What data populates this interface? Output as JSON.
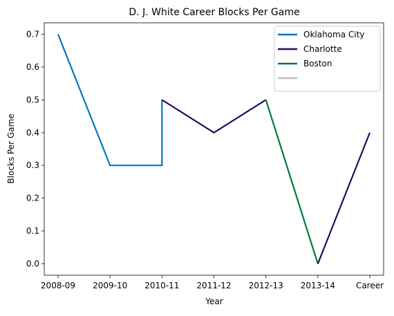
{
  "chart_data": {
    "type": "line",
    "title": "D. J. White Career Blocks Per Game",
    "xlabel": "Year",
    "ylabel": "Blocks Per Game",
    "categories": [
      "2008-09",
      "2009-10",
      "2010-11",
      "2011-12",
      "2012-13",
      "2013-14",
      "Career"
    ],
    "ylim": [
      -0.035,
      0.735
    ],
    "yticks": [
      "0.0",
      "0.1",
      "0.2",
      "0.3",
      "0.4",
      "0.5",
      "0.6",
      "0.7"
    ],
    "grid": false,
    "legend_position": "top-right",
    "series": [
      {
        "name": "Oklahoma City",
        "color": "#0077c0",
        "points": [
          [
            "2008-09",
            0.7
          ],
          [
            "2009-10",
            0.3
          ],
          [
            "2010-11",
            0.3
          ],
          [
            "2010-11",
            0.5
          ]
        ]
      },
      {
        "name": "Charlotte",
        "color": "#1d1160",
        "points": [
          [
            "2010-11",
            0.5
          ],
          [
            "2011-12",
            0.4
          ],
          [
            "2012-13",
            0.5
          ]
        ]
      },
      {
        "name": "Boston",
        "color": "#007a33",
        "points": [
          [
            "2012-13",
            0.5
          ],
          [
            "2013-14",
            0.0
          ]
        ]
      },
      {
        "name": "Charlotte",
        "color": "#1d1160",
        "points": [
          [
            "2013-14",
            0.0
          ],
          [
            "Career",
            0.4
          ]
        ],
        "in_legend": false
      }
    ],
    "legend_entries": [
      {
        "label": "Oklahoma City",
        "color": "#0077c0"
      },
      {
        "label": "Charlotte",
        "color": "#1d1160"
      },
      {
        "label": "Boston",
        "color": "#007a33"
      },
      {
        "label": "",
        "color": "#c0c0c0"
      }
    ]
  }
}
